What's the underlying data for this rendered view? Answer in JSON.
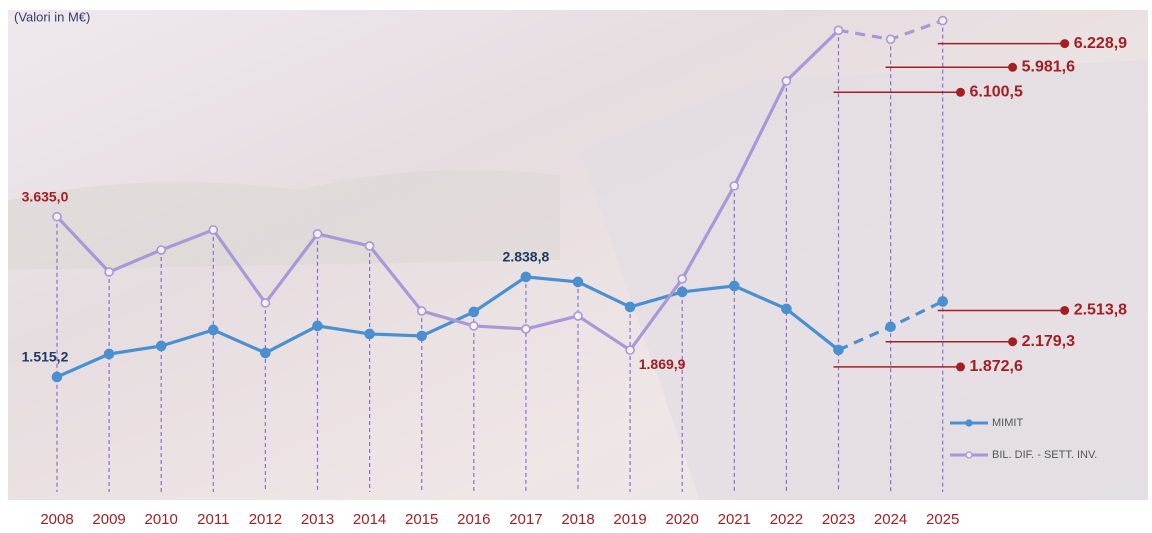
{
  "chart_data": {
    "type": "line",
    "subtitle": "(Valori in M€)",
    "categories": [
      "2008",
      "2009",
      "2010",
      "2011",
      "2012",
      "2013",
      "2014",
      "2015",
      "2016",
      "2017",
      "2018",
      "2019",
      "2020",
      "2021",
      "2022",
      "2023",
      "2024",
      "2025"
    ],
    "dashed_from_index": 15,
    "ylim": [
      0,
      6500
    ],
    "series": [
      {
        "name": "MIMIT",
        "color": "#4a8fd0",
        "marker": "filled",
        "values": [
          1515.2,
          1819,
          1925,
          2137,
          1833,
          2190,
          2084,
          2058,
          2375,
          2838.8,
          2772,
          2441,
          2640,
          2719,
          2415,
          1872.6,
          2179.3,
          2513.8
        ],
        "value_labels": [
          "1.515,2",
          null,
          null,
          null,
          null,
          null,
          null,
          null,
          null,
          "2.838,8",
          null,
          null,
          null,
          null,
          null,
          "1.872,6",
          "2.179,3",
          "2.513,8"
        ]
      },
      {
        "name": "BIL. DIF. - SETT. INV.",
        "color": "#a898d8",
        "marker": "hollow",
        "values": [
          3635.0,
          2904,
          3195,
          3460,
          2494,
          3407,
          3248,
          2388,
          2190,
          2150,
          2322,
          1869.9,
          2812,
          4042,
          5431,
          6100.5,
          5981.6,
          6228.9
        ],
        "value_labels": [
          "3.635,0",
          null,
          null,
          null,
          null,
          null,
          null,
          null,
          null,
          null,
          null,
          "1.869,9",
          null,
          null,
          null,
          "6.100,5",
          "5.981,6",
          "6.228,9"
        ]
      }
    ]
  }
}
